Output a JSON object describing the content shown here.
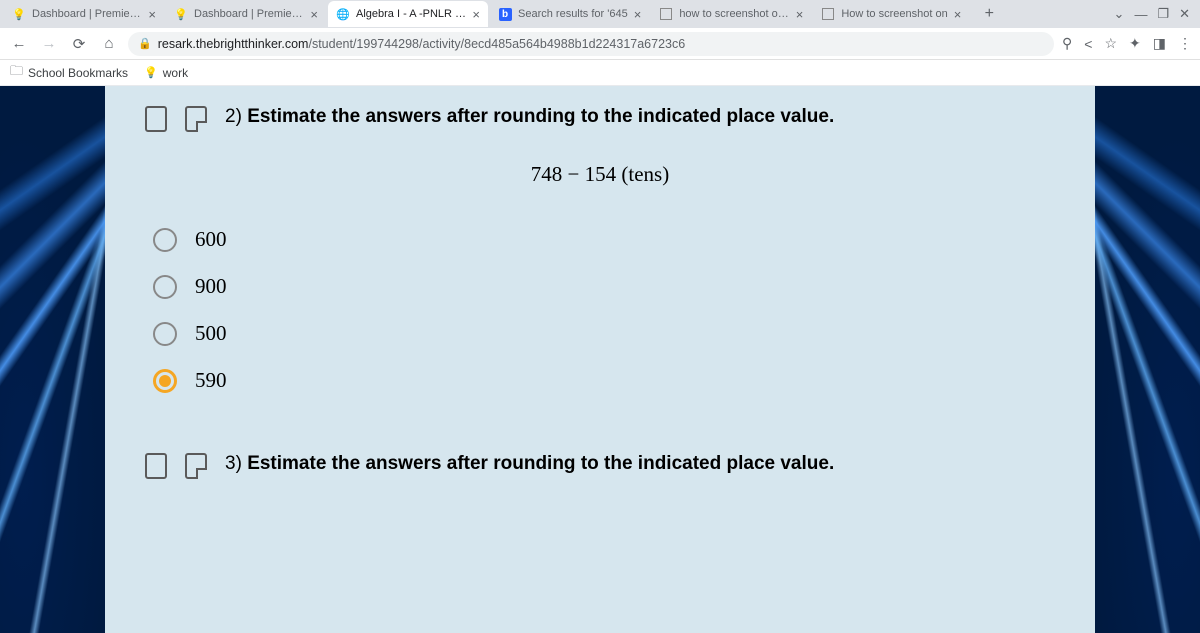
{
  "tabs": [
    {
      "title": "Dashboard | Premier H",
      "icon": "bulb",
      "active": false
    },
    {
      "title": "Dashboard | Premier H",
      "icon": "bulb",
      "active": false
    },
    {
      "title": "Algebra I - A -PNLR - Ac",
      "icon": "globe",
      "active": true
    },
    {
      "title": "Search results for '645",
      "icon": "b",
      "active": false
    },
    {
      "title": "how to screenshot on h",
      "icon": "square",
      "active": false
    },
    {
      "title": "How to screenshot on",
      "icon": "square",
      "active": false
    }
  ],
  "url": {
    "host": "resark.thebrightthinker.com",
    "path": "/student/199744298/activity/8ecd485a564b4988b1d224317a6723c6"
  },
  "bookmarks": [
    {
      "label": "School Bookmarks",
      "icon": "folder"
    },
    {
      "label": "work",
      "icon": "bulb"
    }
  ],
  "question2": {
    "number": "2)",
    "text": "Estimate the answers after rounding to the indicated place value.",
    "expression": "748 − 154 (tens)",
    "options": [
      "600",
      "900",
      "500",
      "590"
    ],
    "selectedIndex": 3
  },
  "question3": {
    "number": "3)",
    "text": "Estimate the answers after rounding to the indicated place value."
  }
}
